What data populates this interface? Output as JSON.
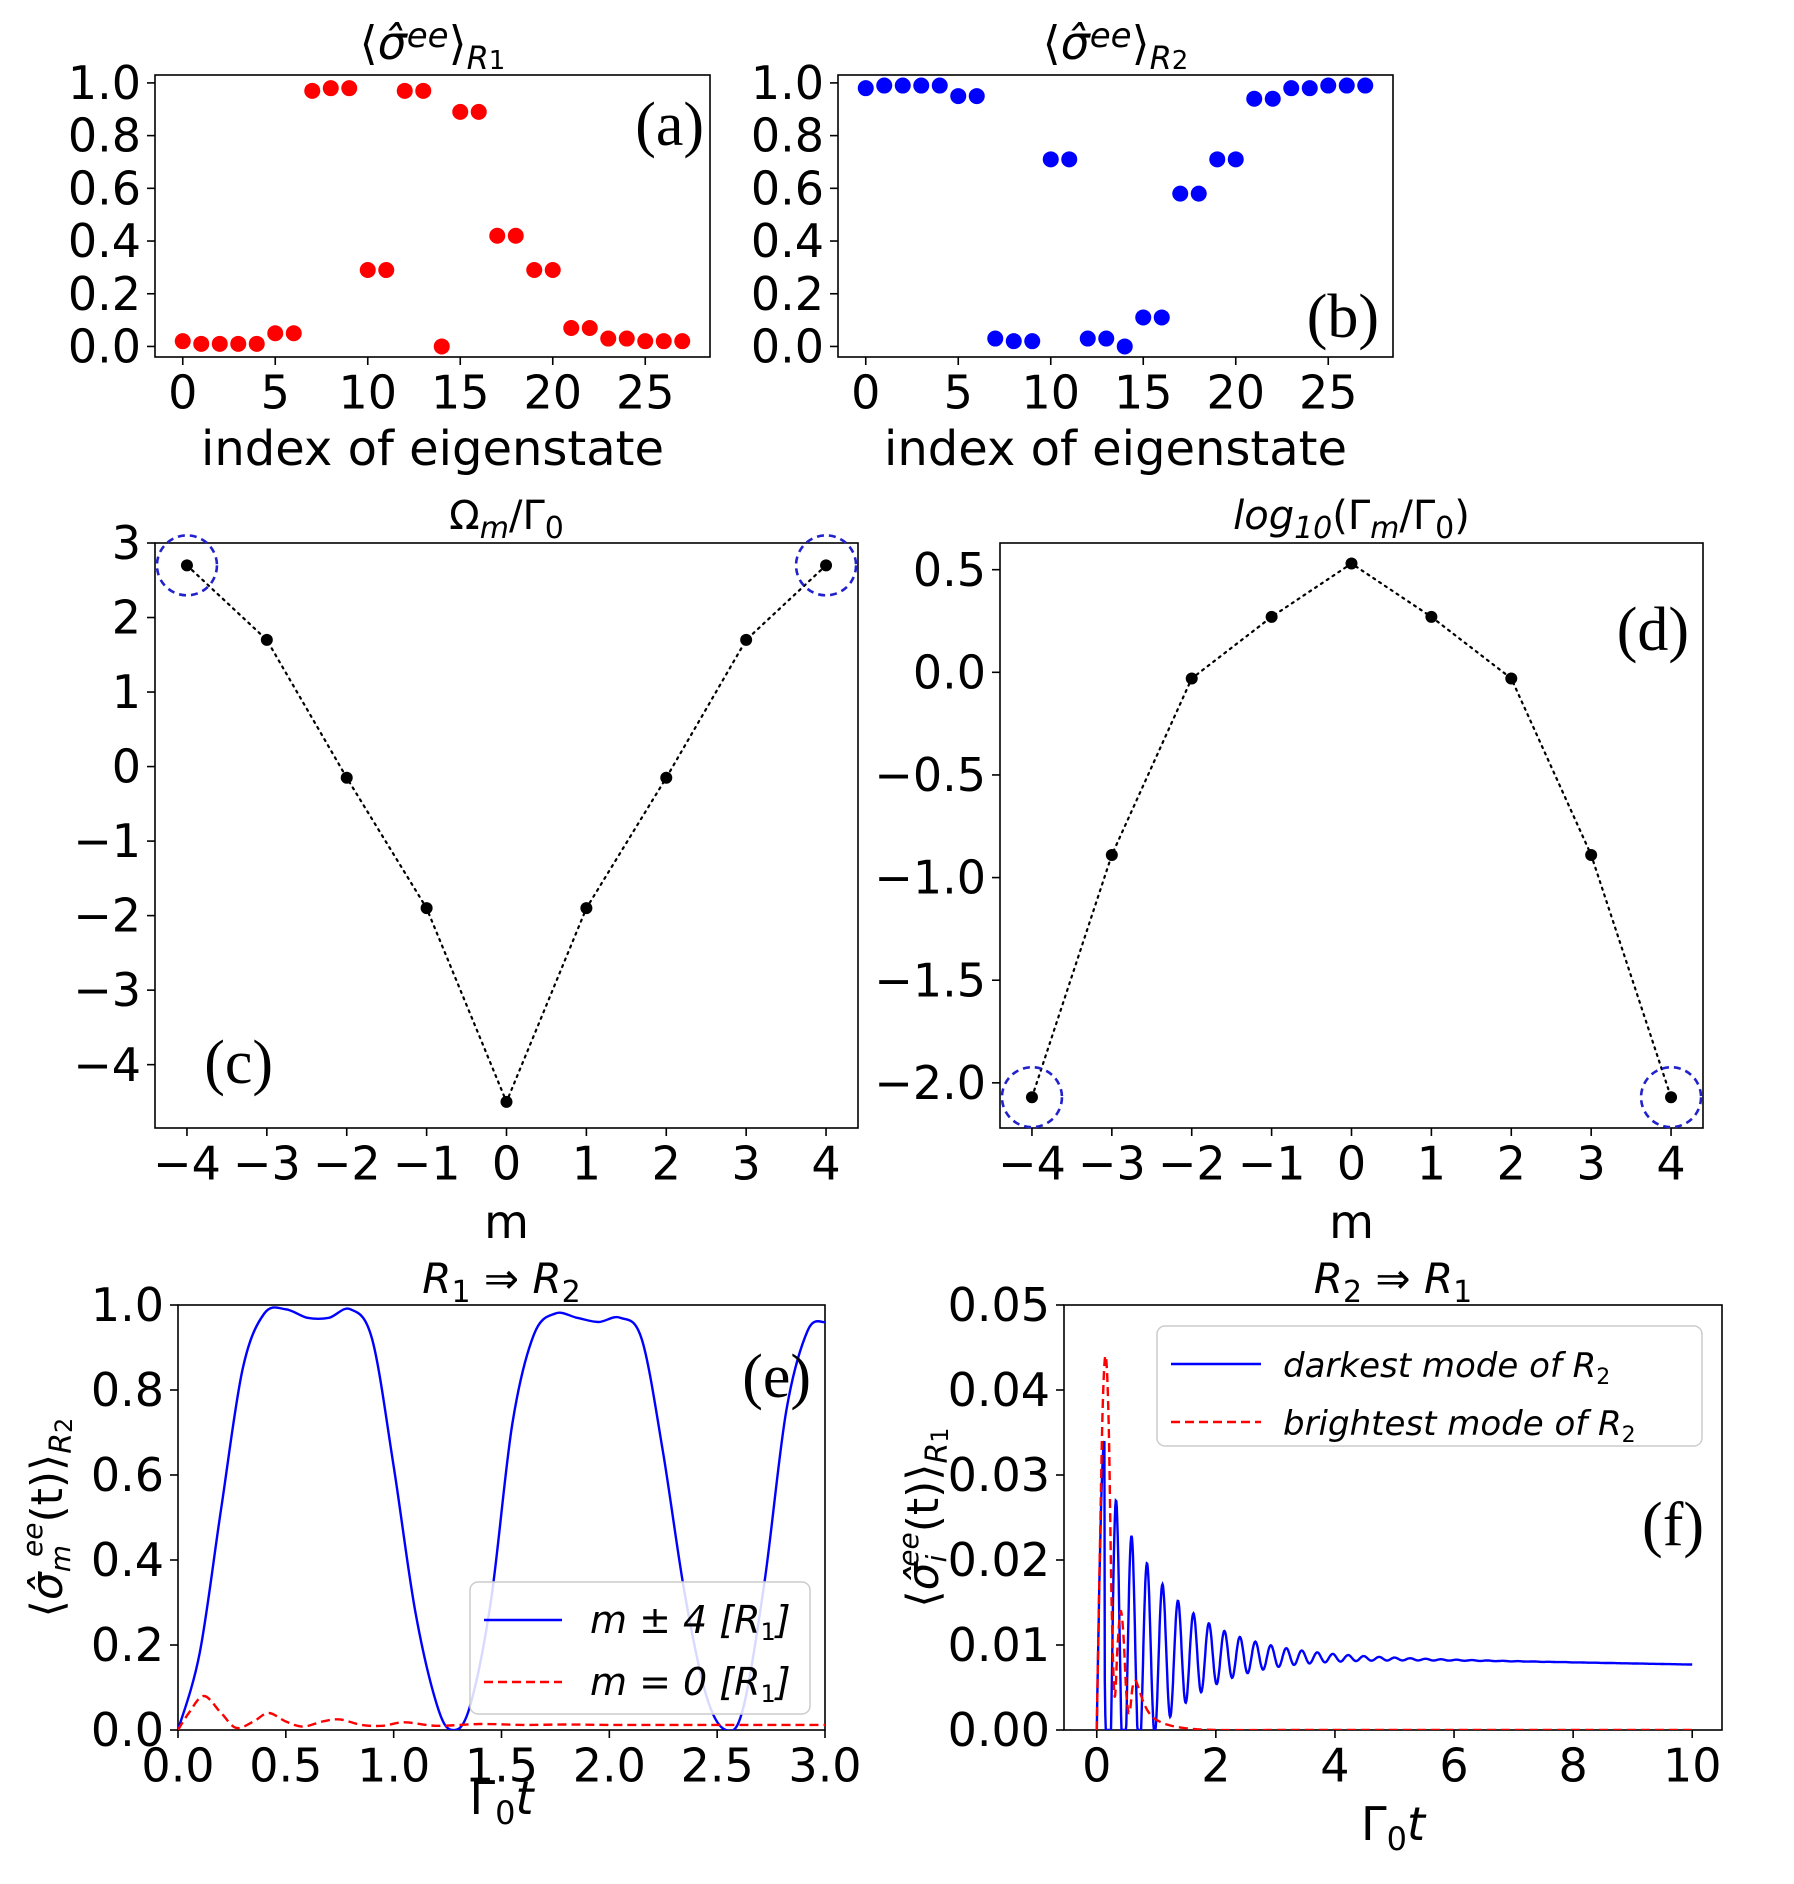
{
  "colors": {
    "red": "#ff0000",
    "blue": "#0000ff",
    "black": "#000000",
    "circle": "#2222cc"
  },
  "chart_data": [
    {
      "id": "a",
      "type": "scatter",
      "title": "⟨σ̂ᵉᵉ⟩R₁",
      "title_main": "⟨σ̂ee⟩",
      "title_sub": "R1",
      "panel_label": "(a)",
      "xlabel": "index of eigenstate",
      "ylabel": "",
      "xlim": [
        -1.5,
        28.5
      ],
      "ylim": [
        -0.04,
        1.03
      ],
      "xticks": [
        0,
        5,
        10,
        15,
        20,
        25
      ],
      "xtick_labels": [
        "0",
        "5",
        "10",
        "15",
        "20",
        "25"
      ],
      "yticks": [
        0,
        0.2,
        0.4,
        0.6,
        0.8,
        1.0
      ],
      "ytick_labels": [
        "0.0",
        "0.2",
        "0.4",
        "0.6",
        "0.8",
        "1.0"
      ],
      "series": [
        {
          "name": "R1",
          "color": "#ff0000",
          "x": [
            0,
            1,
            2,
            3,
            4,
            5,
            6,
            7,
            8,
            9,
            10,
            11,
            12,
            13,
            14,
            15,
            16,
            17,
            18,
            19,
            20,
            21,
            22,
            23,
            24,
            25,
            26,
            27
          ],
          "y": [
            0.02,
            0.01,
            0.01,
            0.01,
            0.01,
            0.05,
            0.05,
            0.97,
            0.98,
            0.98,
            0.29,
            0.29,
            0.97,
            0.97,
            0.0,
            0.89,
            0.89,
            0.42,
            0.42,
            0.29,
            0.29,
            0.07,
            0.07,
            0.03,
            0.03,
            0.02,
            0.02,
            0.02
          ]
        }
      ]
    },
    {
      "id": "b",
      "type": "scatter",
      "title": "⟨σ̂ᵉᵉ⟩R₂",
      "title_main": "⟨σ̂ee⟩",
      "title_sub": "R2",
      "panel_label": "(b)",
      "xlabel": "index of eigenstate",
      "ylabel": "",
      "xlim": [
        -1.5,
        28.5
      ],
      "ylim": [
        -0.04,
        1.03
      ],
      "xticks": [
        0,
        5,
        10,
        15,
        20,
        25
      ],
      "xtick_labels": [
        "0",
        "5",
        "10",
        "15",
        "20",
        "25"
      ],
      "yticks": [
        0,
        0.2,
        0.4,
        0.6,
        0.8,
        1.0
      ],
      "ytick_labels": [
        "0.0",
        "0.2",
        "0.4",
        "0.6",
        "0.8",
        "1.0"
      ],
      "series": [
        {
          "name": "R2",
          "color": "#0000ff",
          "x": [
            0,
            1,
            2,
            3,
            4,
            5,
            6,
            7,
            8,
            9,
            10,
            11,
            12,
            13,
            14,
            15,
            16,
            17,
            18,
            19,
            20,
            21,
            22,
            23,
            24,
            25,
            26,
            27
          ],
          "y": [
            0.98,
            0.99,
            0.99,
            0.99,
            0.99,
            0.95,
            0.95,
            0.03,
            0.02,
            0.02,
            0.71,
            0.71,
            0.03,
            0.03,
            0.0,
            0.11,
            0.11,
            0.58,
            0.58,
            0.71,
            0.71,
            0.94,
            0.94,
            0.98,
            0.98,
            0.99,
            0.99,
            0.99
          ]
        }
      ]
    },
    {
      "id": "c",
      "type": "line",
      "title": "Ωm/Γ0",
      "title_main": "Ω",
      "title_sub": "m",
      "title_rest": "/Γ",
      "panel_label": "(c)",
      "xlabel": "m",
      "ylabel": "",
      "xlim": [
        -4.4,
        4.4
      ],
      "ylim": [
        -4.85,
        3.0
      ],
      "xticks": [
        -4,
        -3,
        -2,
        -1,
        0,
        1,
        2,
        3,
        4
      ],
      "xtick_labels": [
        "−4",
        "−3",
        "−2",
        "−1",
        "0",
        "1",
        "2",
        "3",
        "4"
      ],
      "yticks": [
        -4,
        -3,
        -2,
        -1,
        0,
        1,
        2,
        3
      ],
      "ytick_labels": [
        "−4",
        "−3",
        "−2",
        "−1",
        "0",
        "1",
        "2",
        "3"
      ],
      "series": [
        {
          "name": "Omega_m",
          "color": "#000000",
          "style": "dotted",
          "x": [
            -4,
            -3,
            -2,
            -1,
            0,
            1,
            2,
            3,
            4
          ],
          "y": [
            2.7,
            1.7,
            -0.15,
            -1.9,
            -4.5,
            -1.9,
            -0.15,
            1.7,
            2.7
          ]
        }
      ],
      "circled": [
        -4,
        4
      ]
    },
    {
      "id": "d",
      "type": "line",
      "title": "log10(Γm/Γ0)",
      "title_main": "log",
      "title_sub": "10",
      "title_rest": "(Γ",
      "panel_label": "(d)",
      "xlabel": "m",
      "ylabel": "",
      "xlim": [
        -4.4,
        4.4
      ],
      "ylim": [
        -2.22,
        0.63
      ],
      "xticks": [
        -4,
        -3,
        -2,
        -1,
        0,
        1,
        2,
        3,
        4
      ],
      "xtick_labels": [
        "−4",
        "−3",
        "−2",
        "−1",
        "0",
        "1",
        "2",
        "3",
        "4"
      ],
      "yticks": [
        0.5,
        0.0,
        -0.5,
        -1.0,
        -1.5,
        -2.0
      ],
      "ytick_labels": [
        "0.5",
        "0.0",
        "−0.5",
        "−1.0",
        "−1.5",
        "−2.0"
      ],
      "series": [
        {
          "name": "log_Gamma_m",
          "color": "#000000",
          "style": "dotted",
          "x": [
            -4,
            -3,
            -2,
            -1,
            0,
            1,
            2,
            3,
            4
          ],
          "y": [
            -2.07,
            -0.89,
            -0.03,
            0.27,
            0.53,
            0.27,
            -0.03,
            -0.89,
            -2.07
          ]
        }
      ],
      "circled": [
        -4,
        4
      ]
    },
    {
      "id": "e",
      "type": "line",
      "title": "R1 ⇒ R2",
      "title_from": "R",
      "title_from_sub": "1",
      "title_arrow": " ⇒ ",
      "title_to": "R",
      "title_to_sub": "2",
      "panel_label": "(e)",
      "xlabel": "Γ0t",
      "ylabel": "⟨σ̂m^ee(t)⟩R2",
      "ylabel_parts": {
        "open": "⟨",
        "sigma": "σ̂",
        "sup": "ee",
        "sub": "m",
        "mid": "(t)⟩",
        "sub2": "R",
        "sub2b": "2"
      },
      "xlim": [
        0.0,
        3.0
      ],
      "ylim": [
        0.0,
        1.0
      ],
      "xticks": [
        0.0,
        0.5,
        1.0,
        1.5,
        2.0,
        2.5,
        3.0
      ],
      "xtick_labels": [
        "0.0",
        "0.5",
        "1.0",
        "1.5",
        "2.0",
        "2.5",
        "3.0"
      ],
      "yticks": [
        0.0,
        0.2,
        0.4,
        0.6,
        0.8,
        1.0
      ],
      "ytick_labels": [
        "0.0",
        "0.2",
        "0.4",
        "0.6",
        "0.8",
        "1.0"
      ],
      "series": [
        {
          "name": "m ± 4 [R1]",
          "color": "#0000ff",
          "style": "solid",
          "x": [
            0,
            0.1,
            0.2,
            0.3,
            0.4,
            0.5,
            0.6,
            0.7,
            0.8,
            0.9,
            1.0,
            1.1,
            1.2,
            1.27,
            1.35,
            1.45,
            1.55,
            1.65,
            1.75,
            1.85,
            1.95,
            2.05,
            2.15,
            2.25,
            2.35,
            2.45,
            2.54,
            2.62,
            2.72,
            2.82,
            2.92,
            3.0
          ],
          "y": [
            0,
            0.18,
            0.52,
            0.85,
            0.98,
            0.99,
            0.97,
            0.97,
            0.99,
            0.92,
            0.62,
            0.28,
            0.06,
            0.0,
            0.05,
            0.3,
            0.72,
            0.93,
            0.98,
            0.97,
            0.96,
            0.97,
            0.92,
            0.65,
            0.32,
            0.08,
            0.0,
            0.05,
            0.35,
            0.75,
            0.94,
            0.96
          ]
        },
        {
          "name": "m = 0 [R1]",
          "color": "#ff0000",
          "style": "dashed",
          "x": [
            0,
            0.05,
            0.12,
            0.2,
            0.27,
            0.35,
            0.42,
            0.5,
            0.58,
            0.67,
            0.75,
            0.85,
            0.95,
            1.05,
            1.2,
            1.4,
            1.6,
            1.8,
            2.0,
            2.3,
            2.6,
            3.0
          ],
          "y": [
            0,
            0.04,
            0.08,
            0.04,
            0.005,
            0.02,
            0.04,
            0.02,
            0.008,
            0.02,
            0.025,
            0.012,
            0.01,
            0.018,
            0.01,
            0.014,
            0.012,
            0.013,
            0.012,
            0.012,
            0.012,
            0.012
          ]
        }
      ],
      "legend": {
        "placement": "lower-right",
        "entries": [
          {
            "pre": "m ± 4 [R",
            "sub": "1",
            "post": "]"
          },
          {
            "pre": "m = 0 [R",
            "sub": "1",
            "post": "]"
          }
        ]
      }
    },
    {
      "id": "f",
      "type": "line",
      "title": "R2 ⇒ R1",
      "title_from": "R",
      "title_from_sub": "2",
      "title_arrow": " ⇒ ",
      "title_to": "R",
      "title_to_sub": "1",
      "panel_label": "(f)",
      "xlabel": "Γ0t",
      "ylabel": "⟨σ̂i^ee(t)⟩R1",
      "ylabel_parts": {
        "open": "⟨",
        "sigma": "σ̂",
        "sup": "ee",
        "sub": "i",
        "mid": "(t)⟩",
        "sub2": "R",
        "sub2b": "1"
      },
      "xlim": [
        -0.55,
        10.5
      ],
      "ylim": [
        0.0,
        0.05
      ],
      "xticks": [
        0,
        2,
        4,
        6,
        8,
        10
      ],
      "xtick_labels": [
        "0",
        "2",
        "4",
        "6",
        "8",
        "10"
      ],
      "yticks": [
        0.0,
        0.01,
        0.02,
        0.03,
        0.04,
        0.05
      ],
      "ytick_labels": [
        "0.00",
        "0.01",
        "0.02",
        "0.03",
        "0.04",
        "0.05"
      ],
      "series": [
        {
          "name": "darkest mode of R2",
          "color": "#0000ff",
          "style": "solid",
          "envelope": {
            "mean_start": 0.009,
            "mean_end": 0.0077,
            "amp0": 0.025,
            "decay": 1.0,
            "period": 0.26,
            "t_on": 0.0
          }
        },
        {
          "name": "brightest mode of R2",
          "color": "#ff0000",
          "style": "dashed",
          "x": [
            0,
            0.05,
            0.1,
            0.15,
            0.2,
            0.25,
            0.3,
            0.35,
            0.4,
            0.45,
            0.5,
            0.55,
            0.6,
            0.65,
            0.7,
            0.8,
            0.9,
            1.0,
            1.2,
            1.5,
            2.0,
            3.0,
            5.0,
            10.0
          ],
          "y": [
            0,
            0.02,
            0.038,
            0.044,
            0.036,
            0.015,
            0.004,
            0.01,
            0.014,
            0.011,
            0.004,
            0.002,
            0.005,
            0.0058,
            0.005,
            0.003,
            0.0018,
            0.0012,
            0.0006,
            0.0002,
            0.0,
            0.0,
            0.0,
            0.0
          ]
        }
      ],
      "legend": {
        "placement": "top-right",
        "entries": [
          {
            "pre": "darkest mode of R",
            "sub": "2",
            "post": ""
          },
          {
            "pre": "brightest mode of R",
            "sub": "2",
            "post": ""
          }
        ]
      }
    }
  ]
}
